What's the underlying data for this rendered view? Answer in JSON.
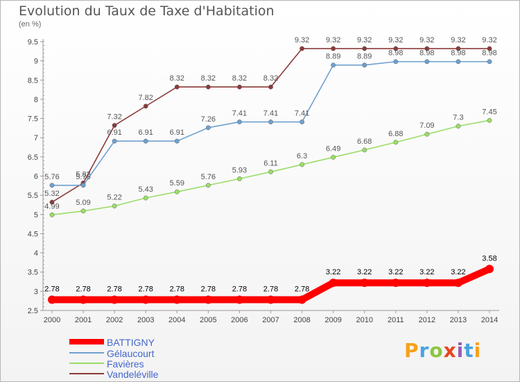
{
  "chart_data": {
    "type": "line",
    "title": "Evolution du Taux de Taxe d'Habitation",
    "subtitle": "(en %)",
    "x": [
      "2000",
      "2001",
      "2002",
      "2003",
      "2004",
      "2005",
      "2006",
      "2007",
      "2008",
      "2009",
      "2010",
      "2011",
      "2012",
      "2013",
      "2014"
    ],
    "ylim": [
      2.5,
      9.5
    ],
    "yticks": [
      "2.5",
      "3",
      "3.5",
      "4",
      "4.5",
      "5",
      "5.5",
      "6",
      "6.5",
      "7",
      "7.5",
      "8",
      "8.5",
      "9",
      "9.5"
    ],
    "grid": false,
    "legend_placement": "bottom-left",
    "series": [
      {
        "name": "BATTIGNY",
        "color": "#ff0000",
        "label_color": "#000000",
        "values": [
          2.78,
          2.78,
          2.78,
          2.78,
          2.78,
          2.78,
          2.78,
          2.78,
          2.78,
          3.22,
          3.22,
          3.22,
          3.22,
          3.22,
          3.58
        ],
        "labels": [
          "2.78",
          "2.78",
          "2.78",
          "2.78",
          "2.78",
          "2.78",
          "2.78",
          "2.78",
          "2.78",
          "3.22",
          "3.22",
          "3.22",
          "3.22",
          "3.22",
          "3.58"
        ]
      },
      {
        "name": "Gélaucourt",
        "color": "#6fa0cf",
        "label_color": "#555555",
        "values": [
          5.76,
          5.76,
          6.91,
          6.91,
          6.91,
          7.26,
          7.41,
          7.41,
          7.41,
          8.89,
          8.89,
          8.98,
          8.98,
          8.98,
          8.98
        ],
        "labels": [
          "5.76",
          "5.76",
          "6.91",
          "6.91",
          "6.91",
          "7.26",
          "7.41",
          "7.41",
          "7.41",
          "8.89",
          "8.89",
          "8.98",
          "8.98",
          "8.98",
          "8.98"
        ]
      },
      {
        "name": "Favières",
        "color": "#99dd66",
        "label_color": "#555555",
        "values": [
          4.99,
          5.09,
          5.22,
          5.43,
          5.59,
          5.76,
          5.93,
          6.11,
          6.3,
          6.49,
          6.68,
          6.88,
          7.09,
          7.3,
          7.45
        ],
        "labels": [
          "4.99",
          "5.09",
          "5.22",
          "5.43",
          "5.59",
          "5.76",
          "5.93",
          "6.11",
          "6.3",
          "6.49",
          "6.68",
          "6.88",
          "7.09",
          "7.3",
          "7.45"
        ]
      },
      {
        "name": "Vandeléville",
        "color": "#8b3a3a",
        "label_color": "#555555",
        "values": [
          5.32,
          5.82,
          7.32,
          7.82,
          8.32,
          8.32,
          8.32,
          8.32,
          9.32,
          9.32,
          9.32,
          9.32,
          9.32,
          9.32,
          9.32
        ],
        "labels": [
          "5.32",
          "5.82",
          "7.32",
          "7.82",
          "8.32",
          "8.32",
          "8.32",
          "8.32",
          "9.32",
          "9.32",
          "9.32",
          "9.32",
          "9.32",
          "9.32",
          "9.32"
        ]
      }
    ]
  },
  "brand": {
    "letters": [
      "P",
      "r",
      "o",
      "x",
      "i",
      "t",
      "i"
    ],
    "colors": [
      "#f7a11a",
      "#4aa3df",
      "#8cc63f",
      "#e8451e",
      "#9b59b6",
      "#4aa3df",
      "#f7a11a"
    ]
  }
}
